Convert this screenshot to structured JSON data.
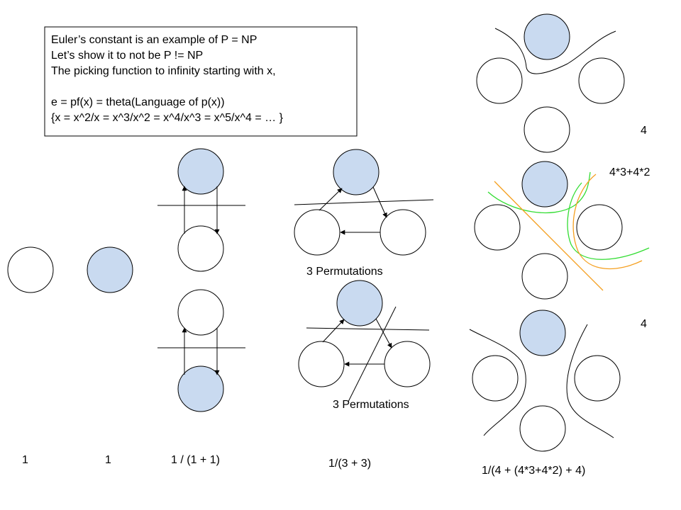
{
  "note": {
    "lines": [
      "Euler’s constant is an example of P = NP",
      "Let’s show it to not be P != NP",
      "The picking function to infinity starting with x,",
      "",
      "e = pf(x) = theta(Language of p(x))",
      "{x = x^2/x = x^3/x^2 = x^4/x^3 = x^5/x^4 = … }"
    ]
  },
  "labels": {
    "perm_top": "3 Permutations",
    "perm_bottom": "3 Permutations",
    "count_top": "4",
    "count_middle": "4*3+4*2",
    "count_bottom": "4"
  },
  "formulas": {
    "f1": "1",
    "f2": "1",
    "f3": "1 / (1 + 1)",
    "f4": "1/(3 + 3)",
    "f5": "1/(4 + (4*3+4*2) + 4)"
  },
  "colors": {
    "filled_node": "#c9daf0",
    "stroke": "#000000",
    "green_curve": "#33dd33",
    "orange_curve": "#f5a020"
  }
}
